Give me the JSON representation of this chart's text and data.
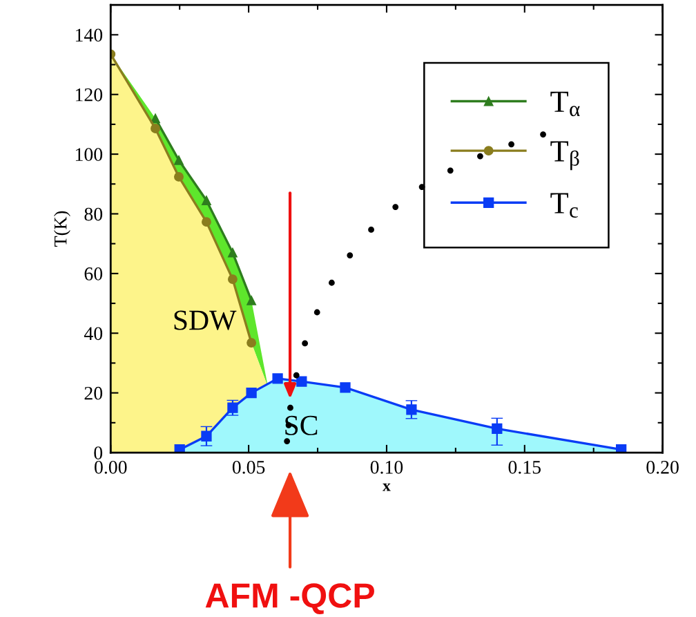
{
  "chart_data": {
    "type": "line",
    "xlabel": "x",
    "ylabel": "T(K)",
    "xlim": [
      0,
      0.2
    ],
    "xticks": [
      {
        "value": 0,
        "label": "0.00"
      },
      {
        "value": 0.05,
        "label": "0.05"
      },
      {
        "value": 0.1,
        "label": "0.10"
      },
      {
        "value": 0.15,
        "label": "0.15"
      },
      {
        "value": 0.2,
        "label": "0.20"
      }
    ],
    "ylim": [
      0,
      150
    ],
    "yticks": [
      0,
      20,
      40,
      60,
      80,
      100,
      120,
      140
    ],
    "grid": false,
    "legend": "top right",
    "series": [
      {
        "name": "T$_{α}$",
        "color": "#2e7d1e",
        "line_style": "solid",
        "marker": "triangle",
        "x": [
          0.0162,
          0.0247,
          0.0347,
          0.0442,
          0.051
        ],
        "values": [
          112,
          98,
          84.5,
          67,
          51
        ]
      },
      {
        "name": "T$_{β}$",
        "color": "#8a7d1e",
        "line_style": "solid",
        "marker": "circle",
        "x": [
          0,
          0.0162,
          0.0247,
          0.0347,
          0.0442,
          0.051
        ],
        "values": [
          133.5,
          108.6,
          92.4,
          77.3,
          58.1,
          36.8
        ]
      },
      {
        "name": "T$_{c}$",
        "color": "#0a3cf5",
        "line_style": "solid",
        "marker": "square",
        "x": [
          0.025,
          0.0347,
          0.0442,
          0.051,
          0.0605,
          0.0692,
          0.085,
          0.109,
          0.14,
          0.185
        ],
        "values": [
          1,
          5.5,
          15,
          20,
          24.8,
          23.8,
          21.8,
          14.4,
          8,
          1
        ],
        "errors": [
          null,
          3.2,
          2.5,
          null,
          null,
          null,
          null,
          3,
          [
            2.5,
            11.5
          ],
          null
        ]
      },
      {
        "type": "scatter",
        "color": "#000000",
        "marker": "circle",
        "x": [
          0.0639,
          0.0645,
          0.0651,
          0.0673,
          0.0704,
          0.0748,
          0.0801,
          0.0867,
          0.0944,
          0.1032,
          0.1128,
          0.1231,
          0.1339,
          0.1452,
          0.1567
        ],
        "values": [
          3.8,
          9.2,
          15,
          25.9,
          36.6,
          47,
          56.9,
          66.1,
          74.7,
          82.3,
          89,
          94.5,
          99.3,
          103.3,
          106.6
        ]
      }
    ],
    "annotations": [
      "SDW",
      "SC",
      "AFM -QCP"
    ]
  }
}
